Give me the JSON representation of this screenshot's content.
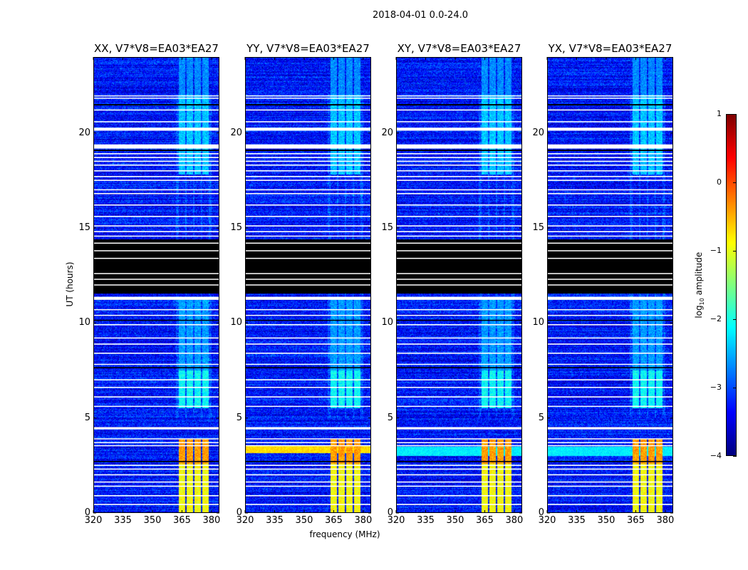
{
  "chart_data": {
    "type": "heatmap",
    "title": "2018-04-01 0.0-24.0",
    "xlabel": "frequency (MHz)",
    "ylabel": "UT (hours)",
    "xlim": [
      320,
      384
    ],
    "ylim": [
      0,
      24
    ],
    "xticks": [
      "320",
      "335",
      "350",
      "365",
      "380"
    ],
    "xtick_values": [
      320,
      335,
      350,
      365,
      380
    ],
    "yticks": [
      "0",
      "5",
      "10",
      "15",
      "20"
    ],
    "ytick_values": [
      0,
      5,
      10,
      15,
      20
    ],
    "panels": [
      {
        "title": "XX, V7*V8=EA03*EA27",
        "broadband_band": null
      },
      {
        "title": "YY, V7*V8=EA03*EA27",
        "broadband_band": {
          "hours": [
            3.15,
            3.55
          ],
          "level": -0.7
        }
      },
      {
        "title": "XY, V7*V8=EA03*EA27",
        "broadband_band": {
          "hours": [
            3.0,
            3.5
          ],
          "level": -2.2
        }
      },
      {
        "title": "YX, V7*V8=EA03*EA27",
        "broadband_band": {
          "hours": [
            3.0,
            3.5
          ],
          "level": -2.2
        }
      }
    ],
    "background_level": -3.3,
    "rfi_channels_mhz": [
      [
        363.5,
        366.5
      ],
      [
        367.5,
        370.5
      ],
      [
        371.5,
        374.5
      ],
      [
        375.5,
        378.5
      ]
    ],
    "rfi_segments": [
      {
        "hours": [
          0,
          2.6
        ],
        "level": -0.9
      },
      {
        "hours": [
          2.6,
          3.9
        ],
        "level": -0.4
      },
      {
        "hours": [
          5.5,
          7.5
        ],
        "level": -2.1
      },
      {
        "hours": [
          7.5,
          11.3
        ],
        "level": -2.6
      },
      {
        "hours": [
          17.8,
          22
        ],
        "level": -2.4
      },
      {
        "hours": [
          22,
          24
        ],
        "level": -2.7
      }
    ],
    "flagged_hours": [
      [
        0.42,
        0.48
      ],
      [
        0.88,
        0.94
      ],
      [
        1.38,
        1.44
      ],
      [
        1.6,
        1.66
      ],
      [
        1.98,
        2.04
      ],
      [
        2.28,
        2.34
      ],
      [
        2.48,
        2.54
      ],
      [
        3.52,
        3.57
      ],
      [
        3.68,
        3.73
      ],
      [
        3.88,
        3.93
      ],
      [
        4.4,
        4.52
      ],
      [
        5.6,
        5.64
      ],
      [
        6.08,
        6.14
      ],
      [
        6.58,
        6.64
      ],
      [
        6.98,
        7.04
      ],
      [
        7.8,
        7.85
      ],
      [
        8.38,
        8.44
      ],
      [
        8.86,
        8.92
      ],
      [
        9.18,
        9.24
      ],
      [
        9.88,
        9.94
      ],
      [
        10.38,
        10.43
      ],
      [
        10.68,
        10.73
      ],
      [
        11.22,
        11.38
      ],
      [
        14.55,
        14.6
      ],
      [
        14.78,
        14.84
      ],
      [
        15.08,
        15.14
      ],
      [
        15.58,
        15.64
      ],
      [
        16.18,
        16.24
      ],
      [
        16.78,
        16.84
      ],
      [
        16.98,
        17.04
      ],
      [
        17.48,
        17.54
      ],
      [
        17.68,
        17.74
      ],
      [
        17.98,
        18.04
      ],
      [
        18.28,
        18.34
      ],
      [
        18.48,
        18.54
      ],
      [
        18.68,
        18.74
      ],
      [
        18.88,
        18.94
      ],
      [
        19.18,
        19.4
      ],
      [
        20.12,
        20.28
      ],
      [
        20.58,
        20.62
      ],
      [
        21.18,
        21.24
      ],
      [
        21.82,
        21.86
      ],
      [
        21.94,
        21.98
      ]
    ],
    "blanked_hours": [
      [
        11.55,
        14.4
      ],
      [
        19.05,
        19.12
      ],
      [
        21.45,
        21.52
      ],
      [
        10.12,
        10.17
      ],
      [
        7.62,
        7.68
      ],
      [
        2.68,
        2.74
      ]
    ],
    "colorbar": {
      "label_main": "log",
      "label_sub": "10",
      "label_rest": " amplitude",
      "ticks": [
        "1",
        "0",
        "−1",
        "−2",
        "−3",
        "−4"
      ],
      "tick_values": [
        1,
        0,
        -1,
        -2,
        -3,
        -4
      ],
      "range": [
        -4,
        1
      ],
      "colormap": "jet"
    }
  }
}
